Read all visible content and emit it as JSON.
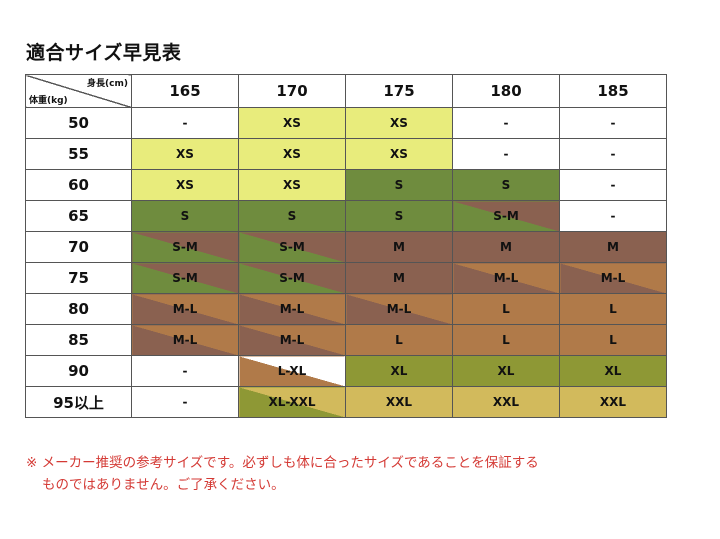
{
  "title": "適合サイズ早見表",
  "table": {
    "corner_top": "身長(cm)",
    "corner_bottom": "体重(kg)",
    "heights": [
      "165",
      "170",
      "175",
      "180",
      "185"
    ],
    "rows": [
      {
        "weight": "50",
        "cells": [
          {
            "size": "-",
            "fill": "white"
          },
          {
            "size": "XS",
            "fill": "yellow"
          },
          {
            "size": "XS",
            "fill": "yellow"
          },
          {
            "size": "-",
            "fill": "white"
          },
          {
            "size": "-",
            "fill": "white"
          }
        ]
      },
      {
        "weight": "55",
        "cells": [
          {
            "size": "XS",
            "fill": "yellow"
          },
          {
            "size": "XS",
            "fill": "yellow"
          },
          {
            "size": "XS",
            "fill": "yellow"
          },
          {
            "size": "-",
            "fill": "white"
          },
          {
            "size": "-",
            "fill": "white"
          }
        ]
      },
      {
        "weight": "60",
        "cells": [
          {
            "size": "XS",
            "fill": "yellow"
          },
          {
            "size": "XS",
            "fill": "yellow"
          },
          {
            "size": "S",
            "fill": "green"
          },
          {
            "size": "S",
            "fill": "green"
          },
          {
            "size": "-",
            "fill": "white"
          }
        ]
      },
      {
        "weight": "65",
        "cells": [
          {
            "size": "S",
            "fill": "green"
          },
          {
            "size": "S",
            "fill": "green"
          },
          {
            "size": "S",
            "fill": "green"
          },
          {
            "size": "S-M",
            "fill": "green-brown"
          },
          {
            "size": "-",
            "fill": "white"
          }
        ]
      },
      {
        "weight": "70",
        "cells": [
          {
            "size": "S-M",
            "fill": "green-brown"
          },
          {
            "size": "S-M",
            "fill": "green-brown"
          },
          {
            "size": "M",
            "fill": "brown"
          },
          {
            "size": "M",
            "fill": "brown"
          },
          {
            "size": "M",
            "fill": "brown"
          }
        ]
      },
      {
        "weight": "75",
        "cells": [
          {
            "size": "S-M",
            "fill": "green-brown"
          },
          {
            "size": "S-M",
            "fill": "green-brown"
          },
          {
            "size": "M",
            "fill": "brown"
          },
          {
            "size": "M-L",
            "fill": "brown-orange"
          },
          {
            "size": "M-L",
            "fill": "brown-orange"
          }
        ]
      },
      {
        "weight": "80",
        "cells": [
          {
            "size": "M-L",
            "fill": "brown-orange"
          },
          {
            "size": "M-L",
            "fill": "brown-orange"
          },
          {
            "size": "M-L",
            "fill": "brown-orange"
          },
          {
            "size": "L",
            "fill": "orange"
          },
          {
            "size": "L",
            "fill": "orange"
          }
        ]
      },
      {
        "weight": "85",
        "cells": [
          {
            "size": "M-L",
            "fill": "brown-orange"
          },
          {
            "size": "M-L",
            "fill": "brown-orange"
          },
          {
            "size": "L",
            "fill": "orange"
          },
          {
            "size": "L",
            "fill": "orange"
          },
          {
            "size": "L",
            "fill": "orange"
          }
        ]
      },
      {
        "weight": "90",
        "cells": [
          {
            "size": "-",
            "fill": "white"
          },
          {
            "size": "L-XL",
            "fill": "white-orange"
          },
          {
            "size": "XL",
            "fill": "olive"
          },
          {
            "size": "XL",
            "fill": "olive"
          },
          {
            "size": "XL",
            "fill": "olive"
          }
        ]
      },
      {
        "weight": "95以上",
        "cells": [
          {
            "size": "-",
            "fill": "white"
          },
          {
            "size": "XL-XXL",
            "fill": "olive-sand"
          },
          {
            "size": "XXL",
            "fill": "sand"
          },
          {
            "size": "XXL",
            "fill": "sand"
          },
          {
            "size": "XXL",
            "fill": "sand"
          }
        ]
      }
    ]
  },
  "note_line1": "※ メーカー推奨の参考サイズです。必ずしも体に合ったサイズであることを保証する",
  "note_line2": "ものではありません。ご了承ください。",
  "colors": {
    "yellow": "#e8ec7c",
    "green": "#6f8c3e",
    "brown": "#8a6150",
    "orange": "#b07a49",
    "olive": "#8e9835",
    "sand": "#d2ba5c",
    "note_red": "#d43a35"
  }
}
